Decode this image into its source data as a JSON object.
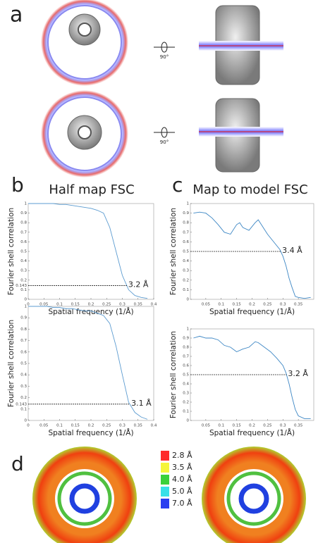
{
  "panels": [
    "a",
    "b",
    "c",
    "d"
  ],
  "rotation_labels": [
    "90°",
    "90°"
  ],
  "resolution_legend": [
    {
      "label": "2.8 Å",
      "color": "#ff2a2a"
    },
    {
      "label": "3.5 Å",
      "color": "#f5f53a"
    },
    {
      "label": "4.0 Å",
      "color": "#3ad13a"
    },
    {
      "label": "5.0 Å",
      "color": "#38e0e8"
    },
    {
      "label": "7.0 Å",
      "color": "#2a3ef0"
    }
  ],
  "chart_data": [
    {
      "type": "line",
      "title": "Half map FSC",
      "xlabel": "Spatial frequency (1/Å)",
      "ylabel": "Fourier shell correlation",
      "x": [
        0,
        0.02,
        0.04,
        0.06,
        0.08,
        0.1,
        0.12,
        0.14,
        0.16,
        0.18,
        0.2,
        0.22,
        0.24,
        0.26,
        0.28,
        0.3,
        0.32,
        0.34,
        0.36,
        0.38
      ],
      "series": [
        {
          "color": "#5b9bd0",
          "values": [
            1,
            1,
            1,
            1,
            1,
            0.99,
            0.99,
            0.98,
            0.97,
            0.96,
            0.95,
            0.93,
            0.9,
            0.75,
            0.5,
            0.25,
            0.1,
            0.04,
            0.02,
            0.01
          ]
        }
      ],
      "threshold": 0.143,
      "annotation": "3.2 Å",
      "xlim": [
        0,
        0.4
      ],
      "ylim": [
        0,
        1
      ],
      "xticks": [
        0,
        0.05,
        0.1,
        0.15,
        0.2,
        0.25,
        0.3,
        0.35,
        0.4
      ],
      "yticks": [
        0,
        0.1,
        0.143,
        0.2,
        0.3,
        0.4,
        0.5,
        0.6,
        0.7,
        0.8,
        0.9,
        1
      ]
    },
    {
      "type": "line",
      "xlabel": "Spatial frequency (1/Å)",
      "ylabel": "Fourier shell correlation",
      "x": [
        0,
        0.02,
        0.04,
        0.06,
        0.08,
        0.1,
        0.12,
        0.14,
        0.16,
        0.18,
        0.2,
        0.22,
        0.24,
        0.26,
        0.28,
        0.3,
        0.32,
        0.34,
        0.36,
        0.38
      ],
      "series": [
        {
          "color": "#5b9bd0",
          "values": [
            1,
            1,
            1,
            1,
            0.99,
            0.99,
            0.98,
            0.98,
            0.97,
            0.96,
            0.96,
            0.94,
            0.92,
            0.85,
            0.65,
            0.4,
            0.16,
            0.07,
            0.03,
            0.01
          ]
        }
      ],
      "threshold": 0.143,
      "annotation": "3.1 Å",
      "xlim": [
        0,
        0.4
      ],
      "ylim": [
        0,
        1
      ],
      "xticks": [
        0,
        0.05,
        0.1,
        0.15,
        0.2,
        0.25,
        0.3,
        0.35,
        0.4
      ],
      "yticks": [
        0,
        0.1,
        0.143,
        0.2,
        0.3,
        0.4,
        0.5,
        0.6,
        0.7,
        0.8,
        0.9,
        1
      ]
    },
    {
      "type": "line",
      "title": "Map to model FSC",
      "xlabel": "Spatial frequency (1/Å)",
      "ylabel": "Fourier shell correlation",
      "x": [
        0.01,
        0.03,
        0.05,
        0.07,
        0.09,
        0.11,
        0.13,
        0.15,
        0.16,
        0.17,
        0.19,
        0.21,
        0.22,
        0.23,
        0.25,
        0.27,
        0.29,
        0.3,
        0.31,
        0.32,
        0.33,
        0.34,
        0.35,
        0.37,
        0.39
      ],
      "series": [
        {
          "color": "#3c86c4",
          "values": [
            0.9,
            0.91,
            0.9,
            0.85,
            0.78,
            0.7,
            0.68,
            0.78,
            0.8,
            0.75,
            0.72,
            0.8,
            0.83,
            0.78,
            0.68,
            0.6,
            0.52,
            0.45,
            0.35,
            0.22,
            0.12,
            0.03,
            0.02,
            0.01,
            0.02
          ]
        }
      ],
      "threshold": 0.5,
      "annotation": "3.4 Å",
      "xlim": [
        0,
        0.4
      ],
      "ylim": [
        0,
        1
      ],
      "xticks": [
        0.05,
        0.1,
        0.15,
        0.2,
        0.25,
        0.3,
        0.35
      ],
      "yticks": [
        0,
        0.1,
        0.2,
        0.3,
        0.4,
        0.5,
        0.6,
        0.7,
        0.8,
        0.9,
        1
      ]
    },
    {
      "type": "line",
      "xlabel": "Spatial frequency (1/Å)",
      "ylabel": "Fourier shell correlation",
      "x": [
        0.01,
        0.03,
        0.05,
        0.07,
        0.09,
        0.11,
        0.13,
        0.15,
        0.17,
        0.19,
        0.21,
        0.22,
        0.24,
        0.26,
        0.28,
        0.3,
        0.31,
        0.32,
        0.33,
        0.34,
        0.35,
        0.37,
        0.39
      ],
      "series": [
        {
          "color": "#3c86c4",
          "values": [
            0.9,
            0.92,
            0.9,
            0.9,
            0.88,
            0.82,
            0.8,
            0.75,
            0.78,
            0.8,
            0.86,
            0.85,
            0.8,
            0.75,
            0.68,
            0.6,
            0.52,
            0.4,
            0.25,
            0.12,
            0.05,
            0.02,
            0.02
          ]
        }
      ],
      "threshold": 0.5,
      "annotation": "3.2 Å",
      "xlim": [
        0,
        0.4
      ],
      "ylim": [
        0,
        1
      ],
      "xticks": [
        0.05,
        0.1,
        0.15,
        0.2,
        0.25,
        0.3,
        0.35
      ],
      "yticks": [
        0,
        0.1,
        0.2,
        0.3,
        0.4,
        0.5,
        0.6,
        0.7,
        0.8,
        0.9,
        1
      ]
    }
  ]
}
